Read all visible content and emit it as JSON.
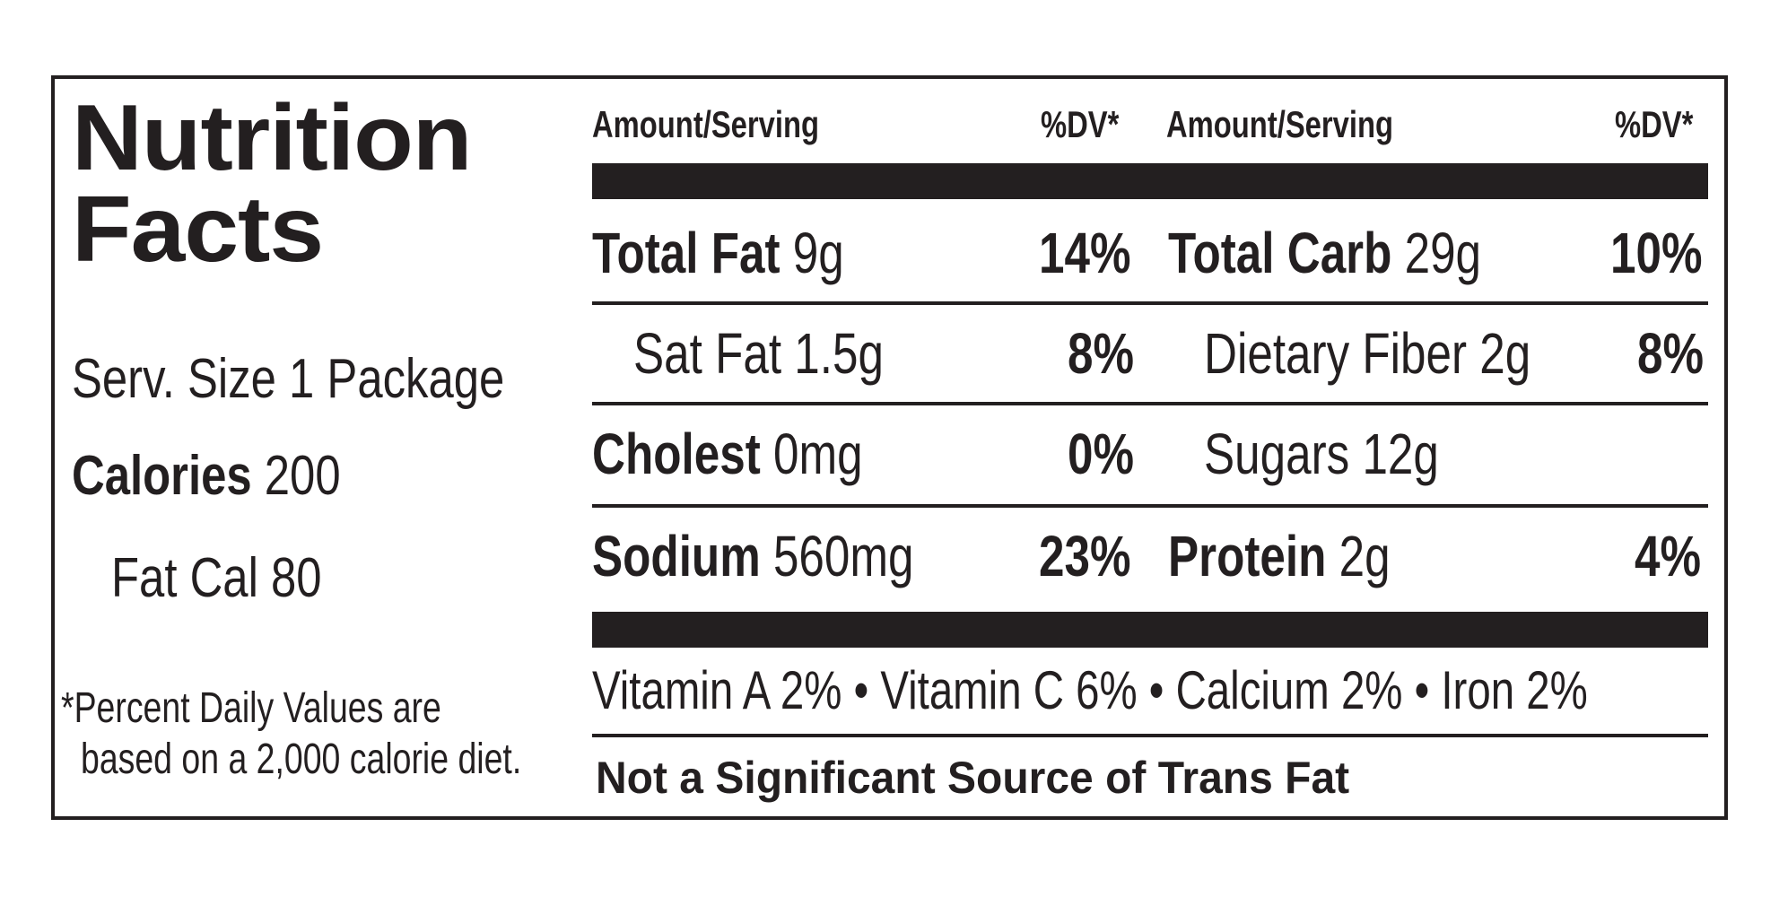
{
  "title": {
    "line1": "Nutrition",
    "line2": "Facts"
  },
  "serving": "Serv. Size 1 Package",
  "calories": {
    "label": "Calories",
    "value": "200"
  },
  "fat_cal": "Fat Cal 80",
  "footnote": {
    "line1": "*Percent Daily Values are",
    "line2": "based on a 2,000 calorie diet."
  },
  "headers": {
    "left_amount": "Amount/Serving",
    "left_dv": "%DV*",
    "right_amount": "Amount/Serving",
    "right_dv": "%DV*"
  },
  "rows_left": [
    {
      "name": "Total Fat",
      "amount": " 9g",
      "dv": "14%",
      "bold": true
    },
    {
      "name": "Sat Fat 1.5g",
      "amount": "",
      "dv": "8%",
      "bold": false
    },
    {
      "name": "Cholest",
      "amount": " 0mg",
      "dv": "0%",
      "bold": true
    },
    {
      "name": "Sodium",
      "amount": " 560mg",
      "dv": "23%",
      "bold": true
    }
  ],
  "rows_right": [
    {
      "name": "Total Carb",
      "amount": " 29g",
      "dv": "10%",
      "bold": true
    },
    {
      "name": "Dietary Fiber 2g",
      "amount": "",
      "dv": "8%",
      "bold": false
    },
    {
      "name": "Sugars 12g",
      "amount": "",
      "dv": "",
      "bold": false
    },
    {
      "name": "Protein",
      "amount": " 2g",
      "dv": "4%",
      "bold": true
    }
  ],
  "vitamins": "Vitamin A 2% • Vitamin C 6% • Calcium 2% • Iron 2%",
  "trans_fat": "Not a Significant Source of Trans Fat"
}
